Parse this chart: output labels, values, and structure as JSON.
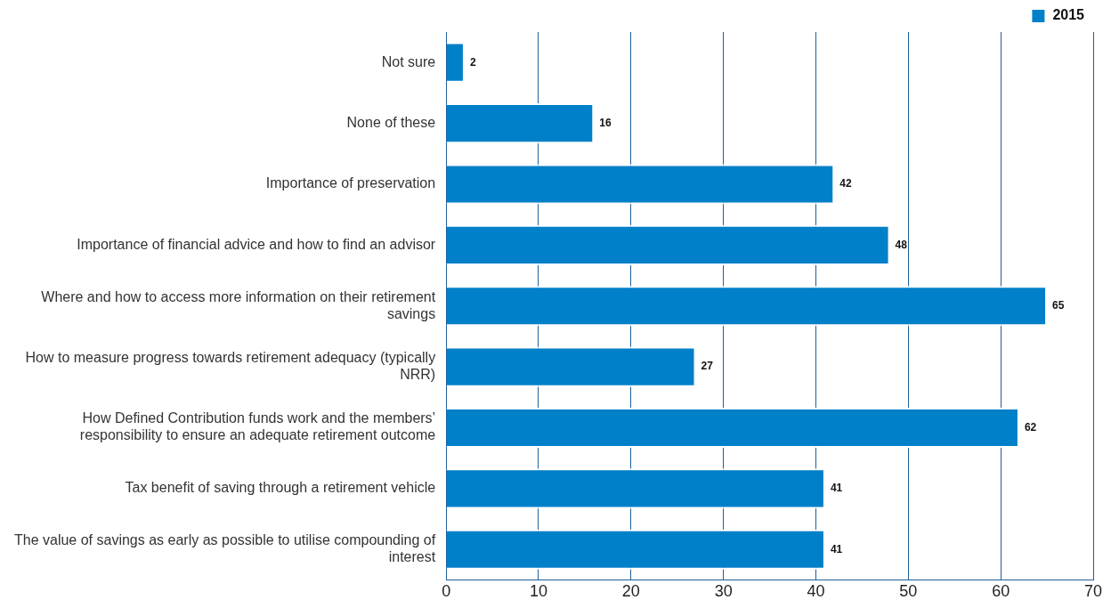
{
  "chart_data": {
    "type": "bar",
    "orientation": "horizontal",
    "categories": [
      "Not sure",
      "None of these",
      "Importance of preservation",
      "Importance of financial advice and how to find an advisor",
      "Where and how to access more information on their retirement savings",
      "How to measure progress towards retirement adequacy (typically NRR)",
      "How Defined Contribution funds work and the members’ responsibility to ensure an adequate retirement outcome",
      "Tax benefit of saving through a retirement vehicle",
      "The value of savings as early as possible to utilise compounding of interest"
    ],
    "series": [
      {
        "name": "2015",
        "color": "#0080c8",
        "values": [
          2,
          16,
          42,
          48,
          65,
          27,
          62,
          41,
          41
        ]
      }
    ],
    "xlim": [
      0,
      70
    ],
    "xticks": [
      0,
      10,
      20,
      30,
      40,
      50,
      60,
      70
    ],
    "grid": "x",
    "legend": "top right",
    "data_labels": true
  }
}
